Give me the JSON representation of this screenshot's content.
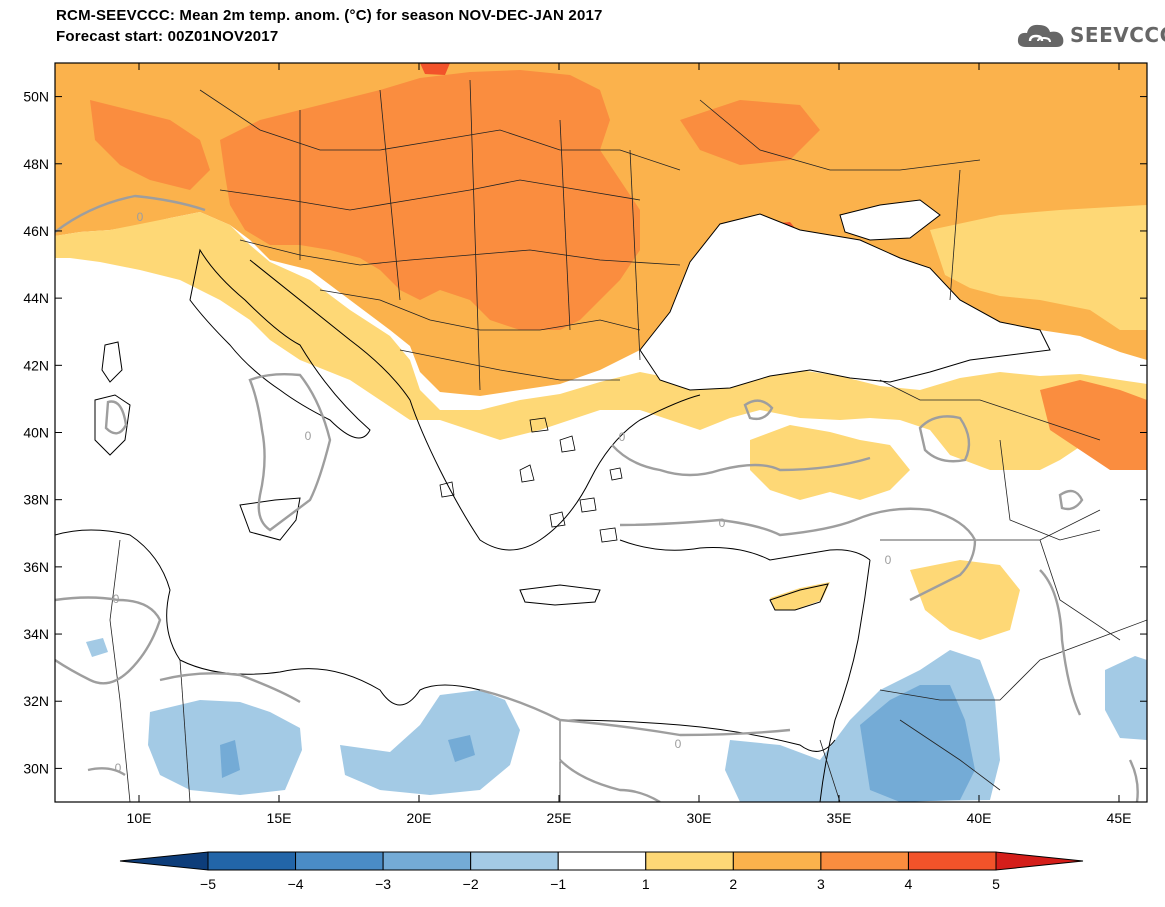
{
  "header": {
    "title": "RCM-SEEVCCC: Mean 2m temp. anom. (°C) for season NOV-DEC-JAN 2017",
    "subtitle": "Forecast start: 00Z01NOV2017"
  },
  "logo": {
    "text": "SEEVCCC",
    "icon": "cloud-icon"
  },
  "map": {
    "lon_range": [
      7,
      46
    ],
    "lat_range": [
      29,
      51
    ],
    "lat_ticks": [
      {
        "value": 50,
        "label": "50N"
      },
      {
        "value": 48,
        "label": "48N"
      },
      {
        "value": 46,
        "label": "46N"
      },
      {
        "value": 44,
        "label": "44N"
      },
      {
        "value": 42,
        "label": "42N"
      },
      {
        "value": 40,
        "label": "40N"
      },
      {
        "value": 38,
        "label": "38N"
      },
      {
        "value": 36,
        "label": "36N"
      },
      {
        "value": 34,
        "label": "34N"
      },
      {
        "value": 32,
        "label": "32N"
      },
      {
        "value": 30,
        "label": "30N"
      }
    ],
    "lon_ticks": [
      {
        "value": 10,
        "label": "10E"
      },
      {
        "value": 15,
        "label": "15E"
      },
      {
        "value": 20,
        "label": "20E"
      },
      {
        "value": 25,
        "label": "25E"
      },
      {
        "value": 30,
        "label": "30E"
      },
      {
        "value": 35,
        "label": "35E"
      },
      {
        "value": 40,
        "label": "40E"
      },
      {
        "value": 45,
        "label": "45E"
      }
    ],
    "zero_contour_label": "0"
  },
  "colorbar": {
    "tick_labels": [
      "-5",
      "-4",
      "-3",
      "-2",
      "-1",
      "1",
      "2",
      "3",
      "4",
      "5"
    ],
    "colors": {
      "lt_m5": "#0d3d7a",
      "m5_m4": "#2265a8",
      "m4_m3": "#4a8cc6",
      "m3_m2": "#74abd6",
      "m2_m1": "#a3cae5",
      "m1_1": "#ffffff",
      "p1_2": "#fed876",
      "p2_3": "#fbb24c",
      "p3_4": "#fa8d3f",
      "p4_5": "#f2532a",
      "gt_5": "#d41e1a"
    }
  }
}
